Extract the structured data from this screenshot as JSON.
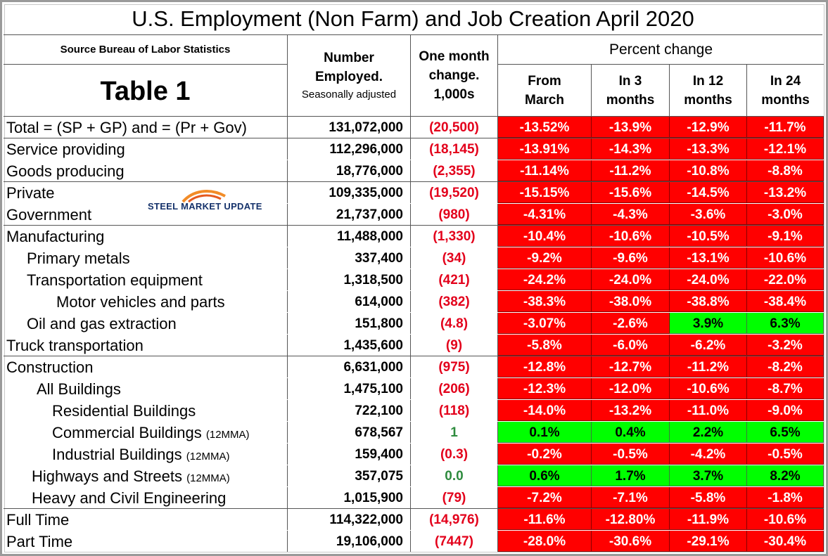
{
  "title": "U.S. Employment (Non Farm) and Job Creation April 2020",
  "header": {
    "source": "Source Bureau of Labor Statistics",
    "table_label": "Table 1",
    "number_employed": [
      "Number",
      "Employed.",
      "Seasonally adjusted"
    ],
    "one_month_change": [
      "One month",
      "change.",
      "1,000s"
    ],
    "percent_change": "Percent change",
    "periods": [
      [
        "From",
        "March"
      ],
      [
        "In 3",
        "months"
      ],
      [
        "In 12",
        "months"
      ],
      [
        "In 24",
        "months"
      ]
    ]
  },
  "logo": {
    "text": "STEEL MARKET UPDATE"
  },
  "colors": {
    "negative_cell": "#ff0000",
    "positive_cell": "#00ff00",
    "negative_text": "#e3001b",
    "positive_text": "#2e8b3e"
  },
  "rows": [
    {
      "label": "Total = (SP + GP) and = (Pr + Gov)",
      "mma": "",
      "employed": "131,072,000",
      "change": "(20,500)",
      "pct": [
        "-13.52%",
        "-13.9%",
        "-12.9%",
        "-11.7%"
      ]
    },
    {
      "label": "Service providing",
      "mma": "",
      "employed": "112,296,000",
      "change": "(18,145)",
      "pct": [
        "-13.91%",
        "-14.3%",
        "-13.3%",
        "-12.1%"
      ]
    },
    {
      "label": "Goods producing",
      "mma": "",
      "employed": "18,776,000",
      "change": "(2,355)",
      "pct": [
        "-11.14%",
        "-11.2%",
        "-10.8%",
        "-8.8%"
      ]
    },
    {
      "label": "Private",
      "mma": "",
      "employed": "109,335,000",
      "change": "(19,520)",
      "pct": [
        "-15.15%",
        "-15.6%",
        "-14.5%",
        "-13.2%"
      ]
    },
    {
      "label": "Government",
      "mma": "",
      "employed": "21,737,000",
      "change": "(980)",
      "pct": [
        "-4.31%",
        "-4.3%",
        "-3.6%",
        "-3.0%"
      ]
    },
    {
      "label": "Manufacturing",
      "mma": "",
      "employed": "11,488,000",
      "change": "(1,330)",
      "pct": [
        "-10.4%",
        "-10.6%",
        "-10.5%",
        "-9.1%"
      ]
    },
    {
      "label": "Primary metals",
      "mma": "",
      "employed": "337,400",
      "change": "(34)",
      "pct": [
        "-9.2%",
        "-9.6%",
        "-13.1%",
        "-10.6%"
      ]
    },
    {
      "label": "Transportation equipment",
      "mma": "",
      "employed": "1,318,500",
      "change": "(421)",
      "pct": [
        "-24.2%",
        "-24.0%",
        "-24.0%",
        "-22.0%"
      ]
    },
    {
      "label": "Motor vehicles and parts",
      "mma": "",
      "employed": "614,000",
      "change": "(382)",
      "pct": [
        "-38.3%",
        "-38.0%",
        "-38.8%",
        "-38.4%"
      ]
    },
    {
      "label": "Oil and gas extraction",
      "mma": "",
      "employed": "151,800",
      "change": "(4.8)",
      "pct": [
        "-3.07%",
        "-2.6%",
        "3.9%",
        "6.3%"
      ]
    },
    {
      "label": "Truck transportation",
      "mma": "",
      "employed": "1,435,600",
      "change": "(9)",
      "pct": [
        "-5.8%",
        "-6.0%",
        "-6.2%",
        "-3.2%"
      ]
    },
    {
      "label": "Construction",
      "mma": "",
      "employed": "6,631,000",
      "change": "(975)",
      "pct": [
        "-12.8%",
        "-12.7%",
        "-11.2%",
        "-8.2%"
      ]
    },
    {
      "label": "All Buildings",
      "mma": "",
      "employed": "1,475,100",
      "change": "(206)",
      "pct": [
        "-12.3%",
        "-12.0%",
        "-10.6%",
        "-8.7%"
      ]
    },
    {
      "label": "Residential Buildings",
      "mma": "",
      "employed": "722,100",
      "change": "(118)",
      "pct": [
        "-14.0%",
        "-13.2%",
        "-11.0%",
        "-9.0%"
      ]
    },
    {
      "label": "Commercial Buildings",
      "mma": "(12MMA)",
      "employed": "678,567",
      "change": "1",
      "pct": [
        "0.1%",
        "0.4%",
        "2.2%",
        "6.5%"
      ]
    },
    {
      "label": "Industrial Buildings",
      "mma": "(12MMA)",
      "employed": "159,400",
      "change": "(0.3)",
      "pct": [
        "-0.2%",
        "-0.5%",
        "-4.2%",
        "-0.5%"
      ]
    },
    {
      "label": "Highways and Streets",
      "mma": "(12MMA)",
      "employed": "357,075",
      "change": "0.0",
      "pct": [
        "0.6%",
        "1.7%",
        "3.7%",
        "8.2%"
      ]
    },
    {
      "label": "Heavy and Civil Engineering",
      "mma": "",
      "employed": "1,015,900",
      "change": "(79)",
      "pct": [
        "-7.2%",
        "-7.1%",
        "-5.8%",
        "-1.8%"
      ]
    },
    {
      "label": "Full Time",
      "mma": "",
      "employed": "114,322,000",
      "change": "(14,976)",
      "pct": [
        "-11.6%",
        "-12.80%",
        "-11.9%",
        "-10.6%"
      ]
    },
    {
      "label": "Part Time",
      "mma": "",
      "employed": "19,106,000",
      "change": "(7447)",
      "pct": [
        "-28.0%",
        "-30.6%",
        "-29.1%",
        "-30.4%"
      ]
    }
  ]
}
